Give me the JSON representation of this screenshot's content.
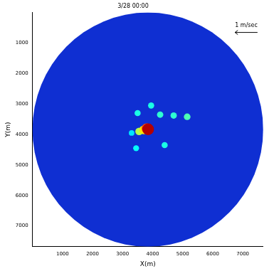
{
  "chart_data": {
    "type": "scatter",
    "title": "3/28 00:00",
    "x_label": "X(m)",
    "y_label": "Y(m)",
    "xlim": [
      0,
      7680
    ],
    "ylim": [
      7680,
      0
    ],
    "xticks": [
      1000,
      2000,
      3000,
      4000,
      5000,
      6000,
      7000
    ],
    "yticks": [
      1000,
      2000,
      3000,
      4000,
      5000,
      6000,
      7000
    ],
    "grid": false,
    "annotation": "1 m/sec",
    "coverage": {
      "center_x": 3840,
      "center_y": 3840,
      "radius": 3840
    },
    "points": {
      "x": [
        3300,
        3500,
        4250,
        4700,
        5150,
        3950,
        4400,
        3450,
        3550,
        3700,
        3800,
        3850
      ],
      "y": [
        3950,
        3300,
        3350,
        3380,
        3420,
        3050,
        4350,
        4450,
        3900,
        3850,
        3800,
        3830
      ],
      "intensity": [
        0.35,
        0.4,
        0.42,
        0.42,
        0.45,
        0.4,
        0.4,
        0.38,
        0.55,
        0.65,
        0.8,
        0.95
      ]
    }
  }
}
